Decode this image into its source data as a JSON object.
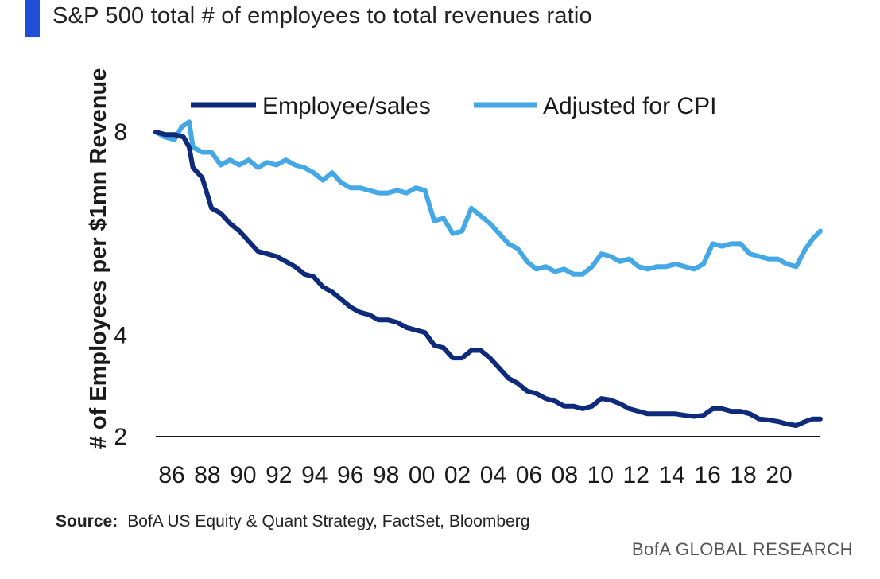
{
  "header": {
    "subtitle": "S&P 500 total # of employees to total revenues ratio",
    "accent_color": "#1f4fd6"
  },
  "footer": {
    "source_label": "Source:",
    "source_text": "BofA US Equity  & Quant  Strategy, FactSet, Bloomberg",
    "brand": "BofA GLOBAL RESEARCH"
  },
  "chart_data": {
    "type": "line",
    "title": "",
    "ylabel": "# of Employees per $1mn Revenue",
    "xlabel": "",
    "ylim": [
      2,
      8
    ],
    "xlim": [
      1986,
      2021.8
    ],
    "yticks": [
      2,
      4,
      8
    ],
    "xticks": [
      "86",
      "88",
      "90",
      "92",
      "94",
      "96",
      "98",
      "00",
      "02",
      "04",
      "06",
      "08",
      "10",
      "12",
      "14",
      "16",
      "18",
      "20"
    ],
    "grid": false,
    "legend": "top",
    "series": [
      {
        "name": "Employee/sales",
        "color": "#0d2b7a",
        "points": [
          [
            1986.0,
            8.0
          ],
          [
            1986.5,
            7.95
          ],
          [
            1987.0,
            7.95
          ],
          [
            1987.5,
            7.9
          ],
          [
            1987.8,
            7.7
          ],
          [
            1988.0,
            7.3
          ],
          [
            1988.5,
            7.1
          ],
          [
            1989.0,
            6.5
          ],
          [
            1989.5,
            6.4
          ],
          [
            1990.0,
            6.2
          ],
          [
            1990.5,
            6.05
          ],
          [
            1991.0,
            5.85
          ],
          [
            1991.5,
            5.65
          ],
          [
            1992.0,
            5.6
          ],
          [
            1992.5,
            5.55
          ],
          [
            1993.0,
            5.45
          ],
          [
            1993.5,
            5.35
          ],
          [
            1994.0,
            5.2
          ],
          [
            1994.5,
            5.15
          ],
          [
            1995.0,
            4.95
          ],
          [
            1995.5,
            4.85
          ],
          [
            1996.0,
            4.7
          ],
          [
            1996.5,
            4.55
          ],
          [
            1997.0,
            4.45
          ],
          [
            1997.5,
            4.4
          ],
          [
            1998.0,
            4.3
          ],
          [
            1998.5,
            4.3
          ],
          [
            1999.0,
            4.25
          ],
          [
            1999.5,
            4.15
          ],
          [
            2000.0,
            4.1
          ],
          [
            2000.5,
            4.05
          ],
          [
            2001.0,
            3.8
          ],
          [
            2001.5,
            3.75
          ],
          [
            2002.0,
            3.55
          ],
          [
            2002.5,
            3.55
          ],
          [
            2003.0,
            3.7
          ],
          [
            2003.5,
            3.7
          ],
          [
            2004.0,
            3.55
          ],
          [
            2004.5,
            3.35
          ],
          [
            2005.0,
            3.15
          ],
          [
            2005.5,
            3.05
          ],
          [
            2006.0,
            2.9
          ],
          [
            2006.5,
            2.85
          ],
          [
            2007.0,
            2.75
          ],
          [
            2007.5,
            2.7
          ],
          [
            2008.0,
            2.6
          ],
          [
            2008.5,
            2.6
          ],
          [
            2009.0,
            2.55
          ],
          [
            2009.5,
            2.6
          ],
          [
            2010.0,
            2.75
          ],
          [
            2010.5,
            2.72
          ],
          [
            2011.0,
            2.65
          ],
          [
            2011.5,
            2.55
          ],
          [
            2012.0,
            2.5
          ],
          [
            2012.5,
            2.45
          ],
          [
            2013.0,
            2.45
          ],
          [
            2013.5,
            2.45
          ],
          [
            2014.0,
            2.45
          ],
          [
            2014.5,
            2.42
          ],
          [
            2015.0,
            2.4
          ],
          [
            2015.5,
            2.42
          ],
          [
            2016.0,
            2.55
          ],
          [
            2016.5,
            2.55
          ],
          [
            2017.0,
            2.5
          ],
          [
            2017.5,
            2.5
          ],
          [
            2018.0,
            2.45
          ],
          [
            2018.5,
            2.35
          ],
          [
            2019.0,
            2.33
          ],
          [
            2019.5,
            2.3
          ],
          [
            2020.0,
            2.25
          ],
          [
            2020.5,
            2.22
          ],
          [
            2021.0,
            2.3
          ],
          [
            2021.4,
            2.35
          ],
          [
            2021.8,
            2.35
          ]
        ]
      },
      {
        "name": "Adjusted for CPI",
        "color": "#45a8e6",
        "points": [
          [
            1986.0,
            8.0
          ],
          [
            1986.5,
            7.9
          ],
          [
            1987.0,
            7.85
          ],
          [
            1987.4,
            8.1
          ],
          [
            1987.8,
            8.2
          ],
          [
            1988.0,
            7.7
          ],
          [
            1988.5,
            7.6
          ],
          [
            1989.0,
            7.6
          ],
          [
            1989.5,
            7.35
          ],
          [
            1990.0,
            7.45
          ],
          [
            1990.5,
            7.35
          ],
          [
            1991.0,
            7.45
          ],
          [
            1991.5,
            7.3
          ],
          [
            1992.0,
            7.4
          ],
          [
            1992.5,
            7.35
          ],
          [
            1993.0,
            7.45
          ],
          [
            1993.5,
            7.35
          ],
          [
            1994.0,
            7.3
          ],
          [
            1994.5,
            7.2
          ],
          [
            1995.0,
            7.05
          ],
          [
            1995.5,
            7.2
          ],
          [
            1996.0,
            7.0
          ],
          [
            1996.5,
            6.9
          ],
          [
            1997.0,
            6.9
          ],
          [
            1997.5,
            6.85
          ],
          [
            1998.0,
            6.8
          ],
          [
            1998.5,
            6.8
          ],
          [
            1999.0,
            6.85
          ],
          [
            1999.5,
            6.8
          ],
          [
            2000.0,
            6.9
          ],
          [
            2000.5,
            6.85
          ],
          [
            2001.0,
            6.25
          ],
          [
            2001.5,
            6.3
          ],
          [
            2002.0,
            6.0
          ],
          [
            2002.5,
            6.05
          ],
          [
            2003.0,
            6.5
          ],
          [
            2003.5,
            6.35
          ],
          [
            2004.0,
            6.2
          ],
          [
            2004.5,
            6.0
          ],
          [
            2005.0,
            5.8
          ],
          [
            2005.5,
            5.7
          ],
          [
            2006.0,
            5.45
          ],
          [
            2006.5,
            5.3
          ],
          [
            2007.0,
            5.35
          ],
          [
            2007.5,
            5.25
          ],
          [
            2008.0,
            5.3
          ],
          [
            2008.5,
            5.2
          ],
          [
            2009.0,
            5.2
          ],
          [
            2009.5,
            5.35
          ],
          [
            2010.0,
            5.6
          ],
          [
            2010.5,
            5.55
          ],
          [
            2011.0,
            5.45
          ],
          [
            2011.5,
            5.5
          ],
          [
            2012.0,
            5.35
          ],
          [
            2012.5,
            5.3
          ],
          [
            2013.0,
            5.35
          ],
          [
            2013.5,
            5.35
          ],
          [
            2014.0,
            5.4
          ],
          [
            2014.5,
            5.35
          ],
          [
            2015.0,
            5.3
          ],
          [
            2015.5,
            5.4
          ],
          [
            2016.0,
            5.8
          ],
          [
            2016.5,
            5.75
          ],
          [
            2017.0,
            5.8
          ],
          [
            2017.5,
            5.8
          ],
          [
            2018.0,
            5.6
          ],
          [
            2018.5,
            5.55
          ],
          [
            2019.0,
            5.5
          ],
          [
            2019.5,
            5.5
          ],
          [
            2020.0,
            5.4
          ],
          [
            2020.5,
            5.35
          ],
          [
            2021.0,
            5.7
          ],
          [
            2021.4,
            5.9
          ],
          [
            2021.8,
            6.05
          ]
        ]
      }
    ]
  }
}
